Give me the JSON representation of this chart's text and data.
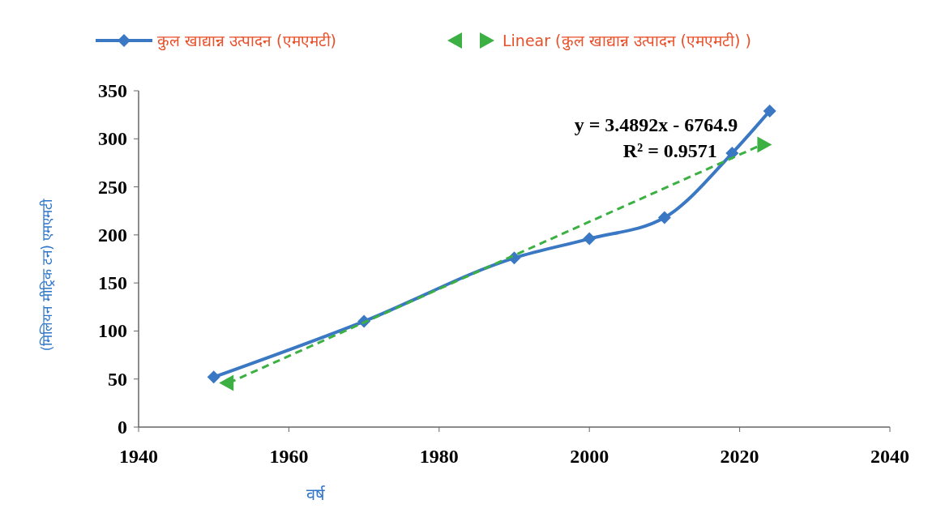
{
  "chart_data": {
    "type": "line",
    "xlabel": "वर्ष",
    "ylabel": "(मिलियन मीट्रिक टन) एमएमटी",
    "x": [
      1950,
      1970,
      1990,
      2000,
      2010,
      2019,
      2024
    ],
    "series": [
      {
        "name": "कुल खाद्यान्न उत्पादन (एमएमटी)",
        "color": "#3a78c4",
        "values": [
          52,
          110,
          176,
          196,
          218,
          285,
          329
        ],
        "marker": "diamond",
        "line_style": "solid"
      },
      {
        "name": "Linear (कुल खाद्यान्न उत्पादन (एमएमटी) )",
        "type": "line",
        "color": "#3cb043",
        "x": [
          1952,
          2023
        ],
        "values": [
          46,
          294
        ],
        "marker": "triangle",
        "line_style": "dashed"
      }
    ],
    "xlim": [
      1940,
      2040
    ],
    "xticks": [
      1940,
      1960,
      1980,
      2000,
      2020,
      2040
    ],
    "ylim": [
      0,
      350
    ],
    "yticks": [
      0,
      50,
      100,
      150,
      200,
      250,
      300,
      350
    ],
    "annotations": [
      "y = 3.4892x - 6764.9",
      "R² = 0.9571"
    ],
    "legend": "top",
    "grid": false
  }
}
